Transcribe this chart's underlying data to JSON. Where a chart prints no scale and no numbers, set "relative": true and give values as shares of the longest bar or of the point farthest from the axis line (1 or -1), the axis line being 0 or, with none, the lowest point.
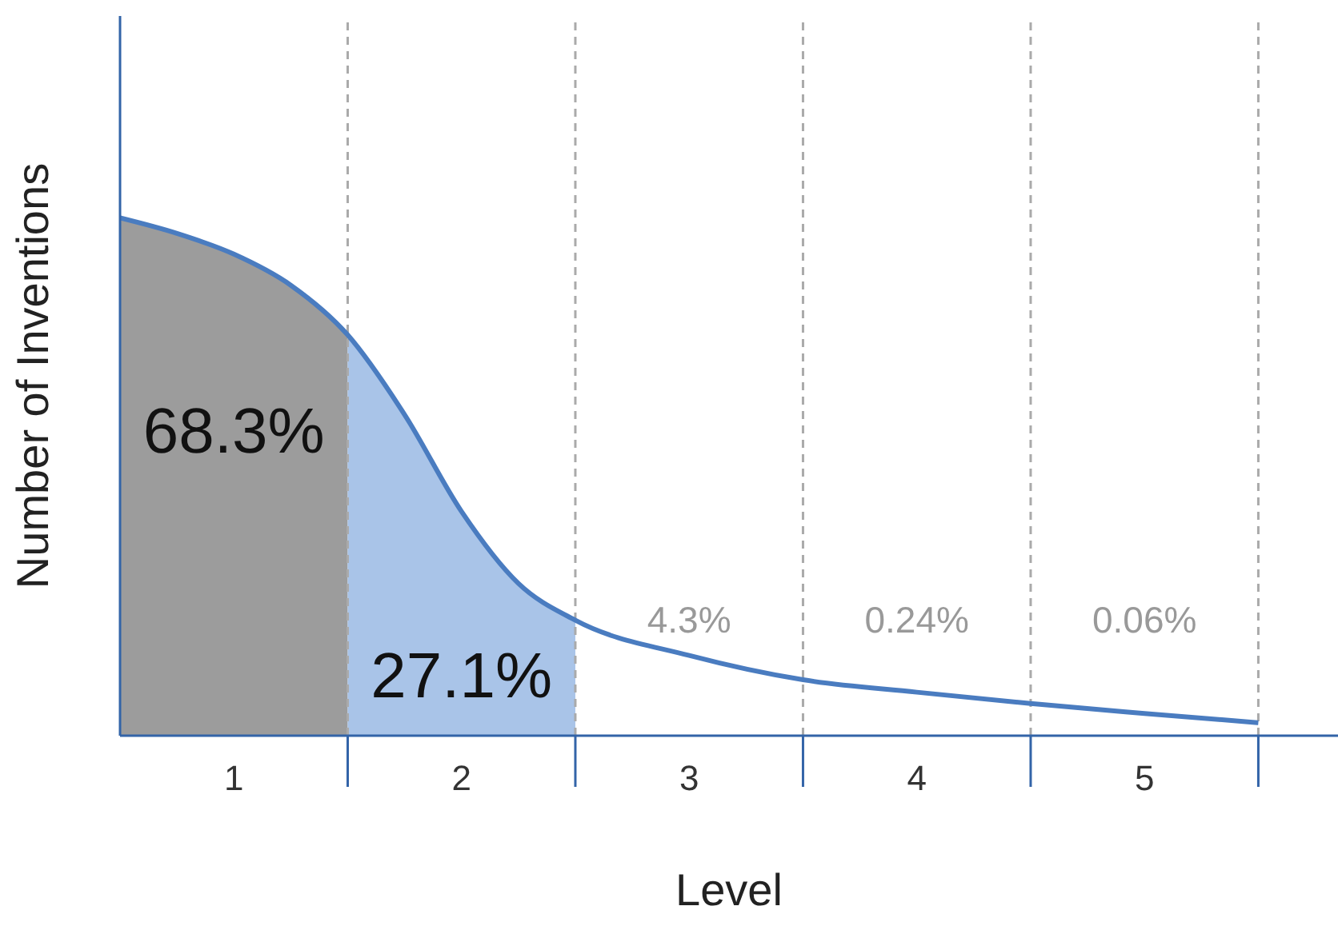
{
  "chart_data": {
    "type": "area",
    "relative": true,
    "xlabel": "Level",
    "ylabel": "Number of Inventions",
    "xlim": [
      0,
      5.35
    ],
    "xticks": [
      {
        "value": 0.5,
        "label": "1"
      },
      {
        "value": 1,
        "label": null
      },
      {
        "value": 1.5,
        "label": "2"
      },
      {
        "value": 2,
        "label": null
      },
      {
        "value": 2.5,
        "label": "3"
      },
      {
        "value": 3,
        "label": null
      },
      {
        "value": 3.5,
        "label": "4"
      },
      {
        "value": 4,
        "label": null
      },
      {
        "value": 4.5,
        "label": "5"
      },
      {
        "value": 5,
        "label": null
      }
    ],
    "series": [
      {
        "color": "#9c9c9c",
        "x": [
          0,
          0.25,
          0.5,
          0.75,
          1
        ],
        "values": [
          1,
          0.97,
          0.93,
          0.87,
          0.774
        ]
      },
      {
        "color": "#a9c4e8",
        "x": [
          1,
          1.25,
          1.5,
          1.75,
          2
        ],
        "values": [
          0.774,
          0.62,
          0.433,
          0.294,
          0.223
        ]
      },
      {
        "type": "line",
        "color": "#4a7cc0",
        "x": [
          0,
          0.25,
          0.5,
          0.75,
          1,
          1.25,
          1.5,
          1.75,
          2,
          2.5,
          3,
          3.5,
          4,
          4.5,
          5
        ],
        "values": [
          1,
          0.97,
          0.93,
          0.87,
          0.774,
          0.62,
          0.433,
          0.294,
          0.223,
          0.155,
          0.108,
          0.084,
          0.062,
          0.043,
          0.025
        ]
      }
    ],
    "ref_lines": [
      {
        "axis": "x",
        "value": 1,
        "color": "#aaaaaa",
        "line_style": "dashed"
      },
      {
        "axis": "x",
        "value": 2,
        "color": "#aaaaaa",
        "line_style": "dashed"
      },
      {
        "axis": "x",
        "value": 3,
        "color": "#aaaaaa",
        "line_style": "dashed"
      },
      {
        "axis": "x",
        "value": 4,
        "color": "#aaaaaa",
        "line_style": "dashed"
      },
      {
        "axis": "x",
        "value": 5,
        "color": "#aaaaaa",
        "line_style": "dashed"
      }
    ],
    "annotations": [
      "68.3%",
      "27.1%",
      "4.3%",
      "0.24%",
      "0.06%"
    ],
    "grid": false
  }
}
